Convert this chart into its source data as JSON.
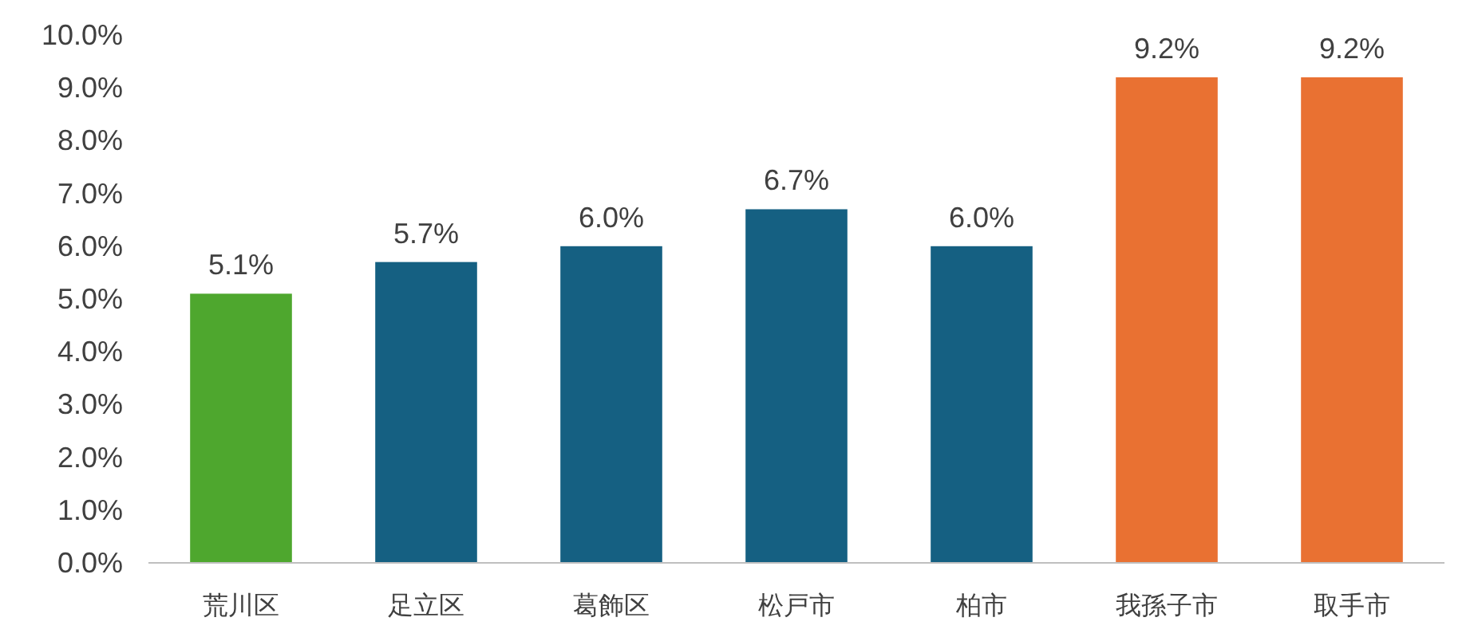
{
  "chart_data": {
    "type": "bar",
    "categories": [
      "荒川区",
      "足立区",
      "葛飾区",
      "松戸市",
      "柏市",
      "我孫子市",
      "取手市"
    ],
    "values": [
      5.1,
      5.7,
      6.0,
      6.7,
      6.0,
      9.2,
      9.2
    ],
    "colors": [
      "#4ea72e",
      "#156082",
      "#156082",
      "#156082",
      "#156082",
      "#e97132",
      "#e97132"
    ],
    "value_labels": [
      "5.1%",
      "5.7%",
      "6.0%",
      "6.7%",
      "6.0%",
      "9.2%",
      "9.2%"
    ],
    "ylim": [
      0,
      10
    ],
    "yticks": [
      {
        "value": 0,
        "label": "0.0%"
      },
      {
        "value": 1,
        "label": "1.0%"
      },
      {
        "value": 2,
        "label": "2.0%"
      },
      {
        "value": 3,
        "label": "3.0%"
      },
      {
        "value": 4,
        "label": "4.0%"
      },
      {
        "value": 5,
        "label": "5.0%"
      },
      {
        "value": 6,
        "label": "6.0%"
      },
      {
        "value": 7,
        "label": "7.0%"
      },
      {
        "value": 8,
        "label": "8.0%"
      },
      {
        "value": 9,
        "label": "9.0%"
      },
      {
        "value": 10,
        "label": "10.0%"
      }
    ],
    "grid": false
  }
}
